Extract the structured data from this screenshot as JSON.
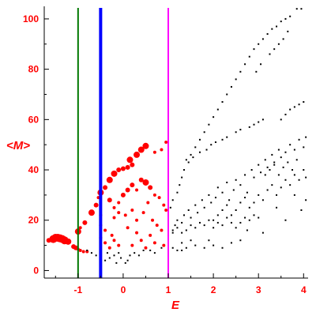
{
  "chart_data": {
    "type": "scatter",
    "xlabel": "E",
    "ylabel": "<M>",
    "xlim": [
      -1.75,
      4.1
    ],
    "ylim": [
      -3,
      105
    ],
    "x_ticks": [
      -1,
      0,
      1,
      2,
      3,
      4
    ],
    "x_tick_labels": [
      "-1",
      "0",
      "1",
      "2",
      "3",
      "4"
    ],
    "y_ticks": [
      0,
      20,
      40,
      60,
      80,
      100
    ],
    "y_tick_labels": [
      "0",
      "20",
      "40",
      "60",
      "80",
      "100"
    ],
    "grid": false,
    "axis_color": "#000000",
    "label_color": "#ff0000",
    "vertical_lines": [
      {
        "x": -1.0,
        "color": "#007700"
      },
      {
        "x": -0.5,
        "color": "#0000ff"
      },
      {
        "x": 1.0,
        "color": "#ff00ff"
      }
    ],
    "series": [
      {
        "color": "#ff0000",
        "points": [
          [
            -1.55,
            12.5,
            5
          ],
          [
            -1.5,
            13,
            5
          ],
          [
            -1.45,
            13,
            5
          ],
          [
            -1.4,
            12.8,
            5
          ],
          [
            -1.35,
            12.5,
            5
          ],
          [
            -1.3,
            12,
            5
          ],
          [
            -1.65,
            12,
            3
          ],
          [
            -1.22,
            11.5,
            4
          ],
          [
            -1.1,
            9.5,
            3
          ],
          [
            -1.05,
            9,
            3
          ],
          [
            -1.0,
            8.5,
            2
          ],
          [
            -0.95,
            8,
            2
          ],
          [
            -0.88,
            7.5,
            2
          ],
          [
            -0.8,
            7.5,
            2
          ],
          [
            -1.0,
            15.5,
            4
          ],
          [
            -0.95,
            17,
            2
          ],
          [
            -0.85,
            19,
            3
          ],
          [
            -0.7,
            23,
            4
          ],
          [
            -0.6,
            26,
            3
          ],
          [
            -0.55,
            29,
            2
          ],
          [
            -0.5,
            31,
            4
          ],
          [
            -0.4,
            33,
            3
          ],
          [
            -0.3,
            36,
            4
          ],
          [
            -0.2,
            38.5,
            4
          ],
          [
            -0.1,
            40,
            3
          ],
          [
            0.0,
            40.5,
            3
          ],
          [
            0.1,
            41,
            3
          ],
          [
            0.2,
            42,
            3
          ],
          [
            0.15,
            44,
            4
          ],
          [
            0.3,
            46,
            4
          ],
          [
            0.4,
            48,
            4
          ],
          [
            0.5,
            49.5,
            4
          ],
          [
            0.7,
            47,
            2
          ],
          [
            0.85,
            48,
            2
          ],
          [
            0.95,
            51,
            2
          ],
          [
            -0.3,
            28,
            3
          ],
          [
            -0.2,
            25,
            2
          ],
          [
            -0.1,
            27,
            2
          ],
          [
            0.0,
            30,
            3
          ],
          [
            0.1,
            32,
            3
          ],
          [
            0.2,
            34,
            3
          ],
          [
            0.3,
            32,
            2
          ],
          [
            0.4,
            36,
            3
          ],
          [
            0.5,
            35,
            4
          ],
          [
            0.6,
            33,
            3
          ],
          [
            0.7,
            30,
            2
          ],
          [
            0.8,
            29,
            2
          ],
          [
            0.9,
            26,
            2
          ],
          [
            0.95,
            24,
            2
          ],
          [
            -0.2,
            21,
            2
          ],
          [
            -0.1,
            23,
            2
          ],
          [
            0.05,
            22,
            2
          ],
          [
            0.2,
            24,
            2
          ],
          [
            0.3,
            20,
            2
          ],
          [
            0.45,
            23,
            2
          ],
          [
            0.55,
            27,
            2
          ],
          [
            0.65,
            20,
            2
          ],
          [
            0.75,
            18,
            2
          ],
          [
            0.85,
            16,
            2
          ],
          [
            0.4,
            12,
            2
          ],
          [
            0.3,
            15,
            2
          ],
          [
            0.1,
            17,
            2
          ],
          [
            0.6,
            14,
            2
          ],
          [
            0.7,
            11,
            2
          ],
          [
            0.5,
            9,
            2
          ],
          [
            -0.5,
            13,
            2
          ],
          [
            -0.4,
            11,
            2
          ],
          [
            -0.3,
            9,
            2
          ],
          [
            -0.2,
            12,
            2
          ],
          [
            -0.1,
            10,
            2
          ],
          [
            -0.5,
            18,
            2
          ],
          [
            -0.5,
            22,
            2
          ],
          [
            -0.4,
            16,
            2
          ],
          [
            -0.25,
            14,
            2
          ],
          [
            0.2,
            10,
            2
          ],
          [
            0.9,
            10,
            2
          ]
        ]
      },
      {
        "color": "#000000",
        "points": [
          [
            -0.6,
            6
          ],
          [
            -0.5,
            5
          ],
          [
            -0.4,
            4
          ],
          [
            -0.3,
            5
          ],
          [
            -0.2,
            6
          ],
          [
            -0.1,
            7
          ],
          [
            -0.35,
            7
          ],
          [
            -0.05,
            5
          ],
          [
            0.1,
            4
          ],
          [
            0.15,
            6
          ],
          [
            0.25,
            7
          ],
          [
            0.35,
            6
          ],
          [
            0.45,
            8
          ],
          [
            0.6,
            8
          ],
          [
            0.7,
            7
          ],
          [
            0.85,
            9
          ],
          [
            -0.7,
            7
          ],
          [
            -0.8,
            8
          ],
          [
            -0.15,
            3
          ],
          [
            0.05,
            3
          ],
          [
            1.1,
            9
          ],
          [
            1.2,
            8
          ],
          [
            1.4,
            9
          ],
          [
            1.6,
            10
          ],
          [
            1.8,
            9
          ],
          [
            2.0,
            10
          ],
          [
            2.2,
            9
          ],
          [
            2.4,
            11
          ],
          [
            1.3,
            11
          ],
          [
            1.5,
            12
          ],
          [
            1.0,
            14
          ],
          [
            1.1,
            16
          ],
          [
            1.15,
            18
          ],
          [
            1.2,
            20
          ],
          [
            1.3,
            19
          ],
          [
            1.35,
            22
          ],
          [
            1.45,
            24
          ],
          [
            1.5,
            21
          ],
          [
            1.6,
            26
          ],
          [
            1.65,
            23
          ],
          [
            1.75,
            28
          ],
          [
            1.8,
            25
          ],
          [
            1.9,
            30
          ],
          [
            1.95,
            27
          ],
          [
            2.05,
            29
          ],
          [
            2.1,
            33
          ],
          [
            2.2,
            31
          ],
          [
            2.3,
            35
          ],
          [
            2.35,
            28
          ],
          [
            2.45,
            32
          ],
          [
            2.5,
            36
          ],
          [
            2.6,
            34
          ],
          [
            2.7,
            38
          ],
          [
            2.75,
            31
          ],
          [
            2.85,
            40
          ],
          [
            2.9,
            37
          ],
          [
            3.0,
            42
          ],
          [
            3.05,
            39
          ],
          [
            3.15,
            44
          ],
          [
            3.2,
            41
          ],
          [
            3.3,
            46
          ],
          [
            3.35,
            43
          ],
          [
            3.45,
            48
          ],
          [
            3.5,
            45
          ],
          [
            3.6,
            47
          ],
          [
            3.7,
            50
          ],
          [
            3.8,
            48
          ],
          [
            3.9,
            52
          ],
          [
            4.0,
            49
          ],
          [
            4.05,
            53
          ],
          [
            1.05,
            25
          ],
          [
            1.1,
            28
          ],
          [
            1.2,
            31
          ],
          [
            1.25,
            34
          ],
          [
            1.3,
            37
          ],
          [
            1.35,
            40
          ],
          [
            1.45,
            43
          ],
          [
            1.5,
            46
          ],
          [
            1.6,
            49
          ],
          [
            1.7,
            52
          ],
          [
            1.8,
            55
          ],
          [
            1.9,
            58
          ],
          [
            2.0,
            61
          ],
          [
            2.1,
            64
          ],
          [
            2.2,
            67
          ],
          [
            2.3,
            70
          ],
          [
            2.4,
            73
          ],
          [
            2.5,
            76
          ],
          [
            2.6,
            79
          ],
          [
            2.7,
            82
          ],
          [
            2.8,
            85
          ],
          [
            2.9,
            88
          ],
          [
            3.0,
            90
          ],
          [
            3.1,
            92
          ],
          [
            3.2,
            94
          ],
          [
            3.3,
            96
          ],
          [
            3.4,
            97
          ],
          [
            3.5,
            99
          ],
          [
            3.6,
            100
          ],
          [
            3.7,
            101
          ],
          [
            3.85,
            104
          ],
          [
            3.95,
            104
          ],
          [
            3.45,
            90
          ],
          [
            3.55,
            92
          ],
          [
            3.65,
            95
          ],
          [
            3.25,
            86
          ],
          [
            3.35,
            88
          ],
          [
            3.05,
            82
          ],
          [
            2.95,
            79
          ],
          [
            3.5,
            60
          ],
          [
            3.6,
            62
          ],
          [
            3.7,
            64
          ],
          [
            3.8,
            65
          ],
          [
            3.9,
            66
          ],
          [
            4.0,
            67
          ],
          [
            2.8,
            57
          ],
          [
            2.9,
            58
          ],
          [
            3.0,
            59
          ],
          [
            3.1,
            60
          ],
          [
            2.5,
            55
          ],
          [
            2.6,
            56
          ],
          [
            2.2,
            52
          ],
          [
            2.3,
            53
          ],
          [
            1.95,
            50
          ],
          [
            2.05,
            51
          ],
          [
            1.7,
            47
          ],
          [
            1.85,
            48
          ],
          [
            1.4,
            44
          ],
          [
            1.55,
            45
          ],
          [
            2.0,
            20
          ],
          [
            2.1,
            22
          ],
          [
            2.2,
            24
          ],
          [
            2.3,
            26
          ],
          [
            2.4,
            22
          ],
          [
            2.5,
            24
          ],
          [
            2.6,
            27
          ],
          [
            2.7,
            29
          ],
          [
            2.8,
            25
          ],
          [
            2.9,
            27
          ],
          [
            3.0,
            30
          ],
          [
            3.1,
            28
          ],
          [
            3.2,
            32
          ],
          [
            3.3,
            34
          ],
          [
            3.4,
            30
          ],
          [
            3.5,
            33
          ],
          [
            3.6,
            36
          ],
          [
            3.7,
            34
          ],
          [
            3.8,
            38
          ],
          [
            3.9,
            36
          ],
          [
            4.0,
            40
          ],
          [
            4.05,
            37
          ],
          [
            3.15,
            38
          ],
          [
            3.25,
            40
          ],
          [
            3.35,
            42
          ],
          [
            3.45,
            38
          ],
          [
            3.55,
            41
          ],
          [
            3.65,
            43
          ],
          [
            3.75,
            40
          ],
          [
            3.85,
            44
          ],
          [
            1.1,
            15
          ],
          [
            1.2,
            17
          ],
          [
            1.3,
            15
          ],
          [
            1.4,
            16
          ],
          [
            1.5,
            18
          ],
          [
            1.6,
            17
          ],
          [
            1.7,
            19
          ],
          [
            1.8,
            18
          ],
          [
            1.9,
            20
          ],
          [
            2.0,
            17
          ],
          [
            2.1,
            19
          ],
          [
            2.2,
            18
          ],
          [
            2.3,
            21
          ],
          [
            2.4,
            19
          ],
          [
            2.5,
            17
          ],
          [
            2.6,
            19
          ],
          [
            2.7,
            21
          ],
          [
            2.8,
            20
          ],
          [
            2.9,
            22
          ],
          [
            3.0,
            21
          ],
          [
            1.3,
            8
          ],
          [
            1.9,
            12
          ],
          [
            2.6,
            12
          ],
          [
            3.1,
            15
          ],
          [
            3.6,
            20
          ],
          [
            3.95,
            24
          ],
          [
            4.05,
            28
          ],
          [
            3.8,
            30
          ],
          [
            3.4,
            25
          ],
          [
            2.75,
            16
          ]
        ]
      }
    ]
  }
}
